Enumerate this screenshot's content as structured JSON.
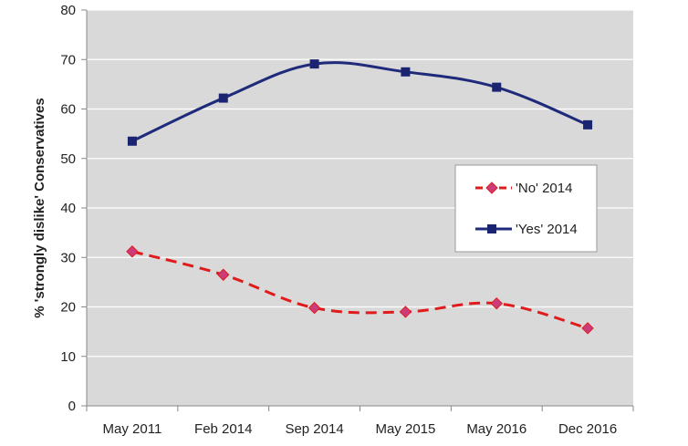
{
  "chart_data": {
    "type": "line",
    "title": "",
    "xlabel": "",
    "ylabel": "% 'strongly dislike' Conservatives",
    "ylim": [
      0,
      80
    ],
    "yticks": [
      0,
      10,
      20,
      30,
      40,
      50,
      60,
      70,
      80
    ],
    "categories": [
      "May 2011",
      "Feb 2014",
      "Sep 2014",
      "May 2015",
      "May 2016",
      "Dec 2016"
    ],
    "grid": true,
    "legend_position": "right-middle",
    "series": [
      {
        "name": "'No' 2014",
        "values": [
          31.2,
          26.5,
          19.8,
          19.0,
          20.7,
          15.7
        ],
        "color": "#e01b1b",
        "marker_color": "#cc3b7a",
        "dash": true,
        "marker": "diamond"
      },
      {
        "name": "'Yes' 2014",
        "values": [
          53.5,
          62.2,
          69.1,
          67.5,
          64.4,
          56.8
        ],
        "color": "#1f2a7a",
        "marker_color": "#1a2470",
        "dash": false,
        "marker": "square"
      }
    ],
    "plot_background": "#d9d9d9",
    "grid_color": "#ffffff"
  }
}
